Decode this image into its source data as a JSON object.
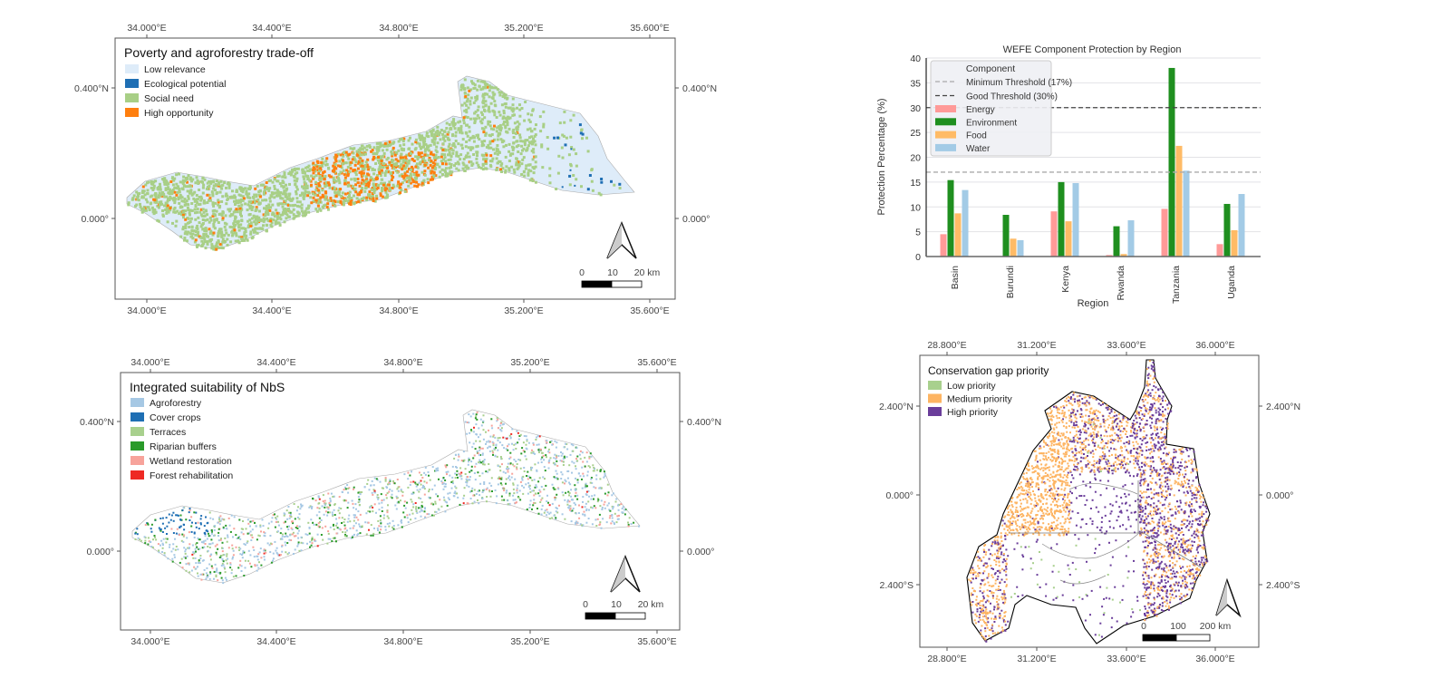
{
  "map_top_left": {
    "title": "Poverty and agroforestry trade-off",
    "legend": [
      {
        "label": "Low relevance",
        "color": "#deecf9"
      },
      {
        "label": "Ecological potential",
        "color": "#1f6fb4"
      },
      {
        "label": "Social need",
        "color": "#a8cf86"
      },
      {
        "label": "High opportunity",
        "color": "#ff7f0e"
      }
    ],
    "x_ticks": [
      "34.000°E",
      "34.400°E",
      "34.800°E",
      "35.200°E",
      "35.600°E"
    ],
    "y_ticks_left": [
      "0.400°N",
      "0.000°"
    ],
    "y_ticks_right": [
      "0.400°N",
      "0.000°"
    ],
    "scale": [
      "0",
      "10",
      "20 km"
    ]
  },
  "map_bottom_left": {
    "title": "Integrated suitability of NbS",
    "legend": [
      {
        "label": "Agroforestry",
        "color": "#a6c8e4"
      },
      {
        "label": "Cover crops",
        "color": "#1f6fb4"
      },
      {
        "label": "Terraces",
        "color": "#a8d08d"
      },
      {
        "label": "Riparian buffers",
        "color": "#2a9a2a"
      },
      {
        "label": "Wetland restoration",
        "color": "#f7a39b"
      },
      {
        "label": "Forest rehabilitation",
        "color": "#ee2a24"
      }
    ],
    "x_ticks": [
      "34.000°E",
      "34.400°E",
      "34.800°E",
      "35.200°E",
      "35.600°E"
    ],
    "y_ticks_left": [
      "0.400°N",
      "0.000°"
    ],
    "y_ticks_right": [
      "0.400°N",
      "0.000°"
    ],
    "scale": [
      "0",
      "10",
      "20 km"
    ]
  },
  "map_bottom_right": {
    "title": "Conservation gap priority",
    "legend": [
      {
        "label": "Low priority",
        "color": "#a8d08d"
      },
      {
        "label": "Medium priority",
        "color": "#fdb462"
      },
      {
        "label": "High priority",
        "color": "#6a3d9a"
      }
    ],
    "x_ticks": [
      "28.800°E",
      "31.200°E",
      "33.600°E",
      "36.000°E"
    ],
    "y_ticks_left": [
      "2.400°N",
      "0.000°",
      "2.400°S"
    ],
    "y_ticks_right": [
      "2.400°N",
      "0.000°",
      "2.400°S"
    ],
    "scale": [
      "0",
      "100",
      "200 km"
    ]
  },
  "chart_data": {
    "type": "bar",
    "title": "WEFE Component Protection by Region",
    "xlabel": "Region",
    "ylabel": "Protection Percentage (%)",
    "ylim": [
      0,
      40
    ],
    "yticks": [
      0,
      5,
      10,
      15,
      20,
      25,
      30,
      35,
      40
    ],
    "grid": true,
    "legend_title": "Component",
    "legend_position": "top-left",
    "categories": [
      "Basin",
      "Burundi",
      "Kenya",
      "Rwanda",
      "Tanzania",
      "Uganda"
    ],
    "series": [
      {
        "name": "Energy",
        "color": "#ff9a98",
        "values": [
          4.5,
          0,
          9.1,
          0.3,
          9.6,
          2.5
        ]
      },
      {
        "name": "Environment",
        "color": "#1f8f1f",
        "values": [
          15.4,
          8.4,
          15.0,
          6.1,
          38.0,
          10.6
        ]
      },
      {
        "name": "Food",
        "color": "#ffbb66",
        "values": [
          8.7,
          3.6,
          7.1,
          0.5,
          22.3,
          5.3
        ]
      },
      {
        "name": "Water",
        "color": "#a3cbe6",
        "values": [
          13.4,
          3.3,
          14.8,
          7.3,
          17.3,
          12.6
        ]
      }
    ],
    "thresholds": [
      {
        "name": "Minimum Threshold (17%)",
        "value": 17,
        "color": "#aaaaaa"
      },
      {
        "name": "Good Threshold (30%)",
        "value": 30,
        "color": "#444444"
      }
    ]
  }
}
